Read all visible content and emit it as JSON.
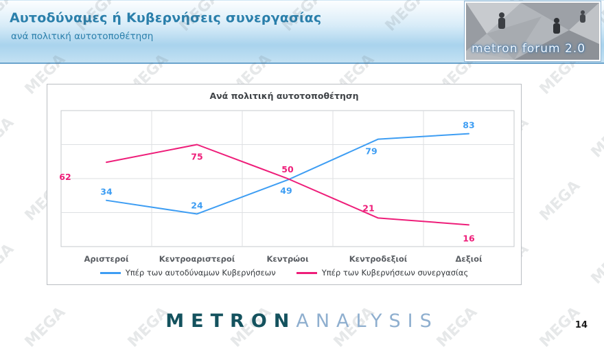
{
  "header": {
    "title": "Αυτοδύναμες ή Κυβερνήσεις συνεργασίας",
    "subtitle": "ανά πολιτική αυτοτοποθέτηση",
    "logo_text": "metron forum 2.0"
  },
  "watermark": {
    "text": "MEGA"
  },
  "chart_data": {
    "type": "line",
    "title": "Ανά πολιτική αυτοτοποθέτηση",
    "categories": [
      "Αριστεροί",
      "Κεντροαριστεροί",
      "Κεντρώοι",
      "Κεντροδεξιοί",
      "Δεξιοί"
    ],
    "series": [
      {
        "name": "Υπέρ των αυτοδύναμων Κυβερνήσεων",
        "color": "#3d9df3",
        "values": [
          34,
          24,
          49,
          79,
          83
        ],
        "label_offsets": [
          [
            0,
            -8
          ],
          [
            0,
            -8
          ],
          [
            -2,
            20
          ],
          [
            -10,
            22
          ],
          [
            0,
            -8
          ]
        ]
      },
      {
        "name": "Υπέρ των Κυβερνήσεων συνεργασίας",
        "color": "#ee1d79",
        "values": [
          62,
          75,
          50,
          21,
          16
        ],
        "label_offsets": [
          [
            -60,
            26
          ],
          [
            0,
            22
          ],
          [
            0,
            -9
          ],
          [
            -14,
            -10
          ],
          [
            0,
            24
          ]
        ]
      }
    ],
    "xlabel": "",
    "ylabel": "",
    "ylim": [
      0,
      100
    ],
    "grid": true,
    "legend_position": "bottom"
  },
  "footer": {
    "brand_primary": "METRON",
    "brand_secondary": "ANALYSIS",
    "page_number": "14"
  }
}
